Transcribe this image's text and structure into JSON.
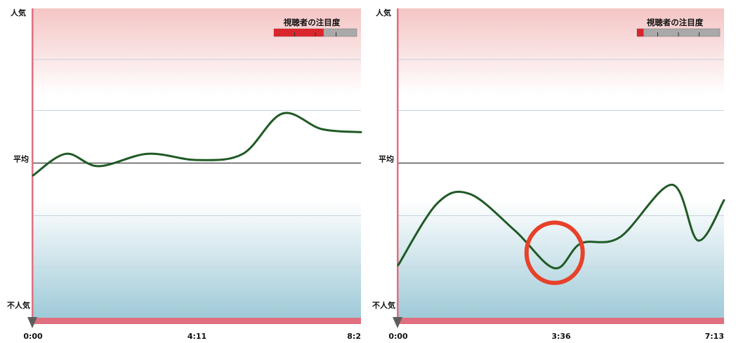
{
  "chart_data": [
    {
      "type": "line",
      "title": "",
      "y_axis_labels": {
        "top": "人気",
        "middle": "平均",
        "bottom": "不人気"
      },
      "x_tick_labels": [
        "0:00",
        "4:11",
        "8:2"
      ],
      "xlim": [
        0,
        100
      ],
      "ylim": [
        0,
        100
      ],
      "grid": true,
      "attention_meter": {
        "label": "視聴者の注目度",
        "level": 0.6
      },
      "series": [
        {
          "color": "#1f5a25",
          "x": [
            0,
            10,
            20,
            35,
            50,
            64,
            76,
            88,
            100
          ],
          "y": [
            46,
            53,
            49,
            53,
            51,
            53,
            66,
            61,
            60
          ]
        }
      ]
    },
    {
      "type": "line",
      "title": "",
      "y_axis_labels": {
        "top": "人気",
        "middle": "平均",
        "bottom": "不人気"
      },
      "x_tick_labels": [
        "0:00",
        "3:36",
        "7:13"
      ],
      "xlim": [
        0,
        100
      ],
      "ylim": [
        0,
        100
      ],
      "grid": true,
      "attention_meter": {
        "label": "視聴者の注目度",
        "level": 0.08
      },
      "highlight": {
        "x": 48,
        "y": 21,
        "color": "#e8412a"
      },
      "series": [
        {
          "color": "#1f5a25",
          "x": [
            0,
            12,
            22,
            36,
            48,
            56,
            68,
            84,
            92,
            100
          ],
          "y": [
            17,
            37,
            40,
            28,
            16,
            24,
            26,
            43,
            25,
            38
          ]
        }
      ]
    }
  ],
  "colors": {
    "top_band": "#f5c5c5",
    "bottom_band": "#9fcad8",
    "axis_red": "#e07080",
    "average_line": "#555555",
    "meter_fill": "#d8262c",
    "meter_empty": "#a9a9a9"
  }
}
